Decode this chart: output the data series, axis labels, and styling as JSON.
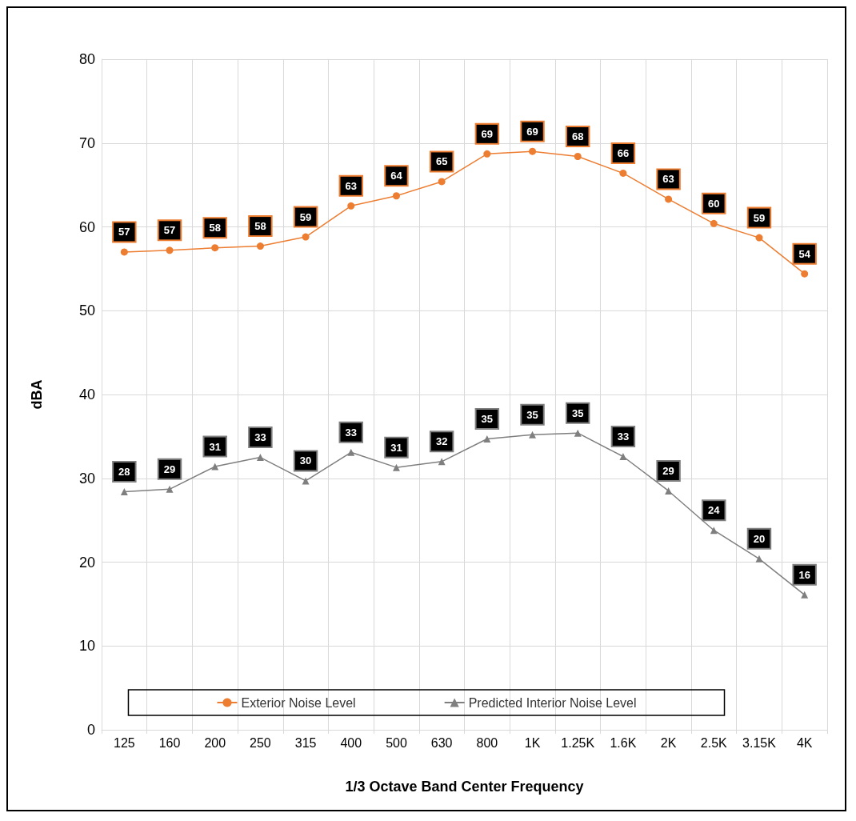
{
  "chart_data": {
    "type": "line",
    "xlabel": "1/3 Octave Band Center Frequency",
    "ylabel": "dBA",
    "categories": [
      "125",
      "160",
      "200",
      "250",
      "315",
      "400",
      "500",
      "630",
      "800",
      "1K",
      "1.25K",
      "1.6K",
      "2K",
      "2.5K",
      "3.15K",
      "4K"
    ],
    "ylim": [
      0,
      80
    ],
    "yticks": [
      0,
      10,
      20,
      30,
      40,
      50,
      60,
      70,
      80
    ],
    "grid": true,
    "legend": "bottom",
    "series": [
      {
        "name": "Exterior Noise Level",
        "color": "#ed7d31",
        "marker": "circle",
        "values": [
          57.0,
          57.2,
          57.5,
          57.7,
          58.8,
          62.5,
          63.7,
          65.4,
          68.7,
          69.0,
          68.4,
          66.4,
          63.3,
          60.4,
          58.7,
          54.4
        ],
        "value_labels": [
          "57",
          "57",
          "58",
          "58",
          "59",
          "63",
          "64",
          "65",
          "69",
          "69",
          "68",
          "66",
          "63",
          "60",
          "59",
          "54"
        ]
      },
      {
        "name": "Predicted Interior Noise Level",
        "color": "#7f7f7f",
        "marker": "triangle",
        "values": [
          28.4,
          28.7,
          31.4,
          32.5,
          29.7,
          33.1,
          31.3,
          32.0,
          34.7,
          35.2,
          35.4,
          32.6,
          28.5,
          23.8,
          20.4,
          16.1
        ],
        "value_labels": [
          "28",
          "29",
          "31",
          "33",
          "30",
          "33",
          "31",
          "32",
          "35",
          "35",
          "35",
          "33",
          "29",
          "24",
          "20",
          "16"
        ]
      }
    ]
  }
}
